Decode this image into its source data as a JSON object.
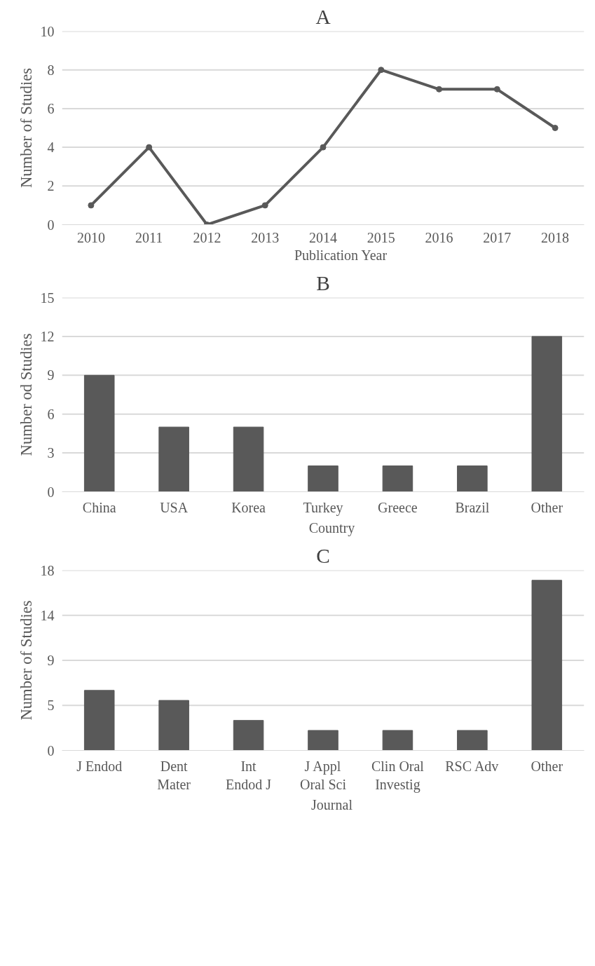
{
  "chart_data": [
    {
      "type": "line",
      "title": "A",
      "ylabel": "Number of Studies",
      "categories": [
        "2010",
        "2011",
        "2012",
        "2013",
        "2014",
        "2015",
        "2016",
        "2017",
        "2018"
      ],
      "series": [
        {
          "name": "Publication Year",
          "color": "#595959",
          "values": [
            1,
            4,
            0,
            1,
            4,
            8,
            7,
            7,
            5
          ]
        }
      ],
      "ylim": [
        0,
        10
      ],
      "yticks": [
        0,
        2,
        4,
        6,
        8,
        10
      ],
      "grid": "y",
      "legend": "bottom",
      "marker": "circle",
      "line_style": "solid"
    },
    {
      "type": "bar",
      "title": "B",
      "ylabel": "Number od Studies",
      "categories": [
        "China",
        "USA",
        "Korea",
        "Turkey",
        "Greece",
        "Brazil",
        "Other"
      ],
      "series": [
        {
          "name": "Country",
          "color": "#595959",
          "values": [
            9,
            5,
            5,
            2,
            2,
            2,
            12
          ]
        }
      ],
      "ylim": [
        0,
        15
      ],
      "yticks": [
        0,
        3,
        6,
        9,
        12,
        15
      ],
      "grid": "y",
      "legend": "bottom"
    },
    {
      "type": "bar",
      "title": "C",
      "ylabel": "Number of Studies",
      "categories": [
        "J Endod",
        "Dent\nMater",
        "Int\nEndod J",
        "J Appl\nOral Sci",
        "Clin Oral\nInvestig",
        "RSC Adv",
        "Other"
      ],
      "series": [
        {
          "name": "Journal",
          "color": "#595959",
          "values": [
            6,
            5,
            3,
            2,
            2,
            2,
            17
          ]
        }
      ],
      "ylim": [
        0,
        18
      ],
      "yticks": [
        0,
        {
          "value": 4.5,
          "label": "5"
        },
        9,
        {
          "value": 13.5,
          "label": "14"
        },
        18
      ],
      "grid": "y",
      "legend": "bottom"
    }
  ]
}
